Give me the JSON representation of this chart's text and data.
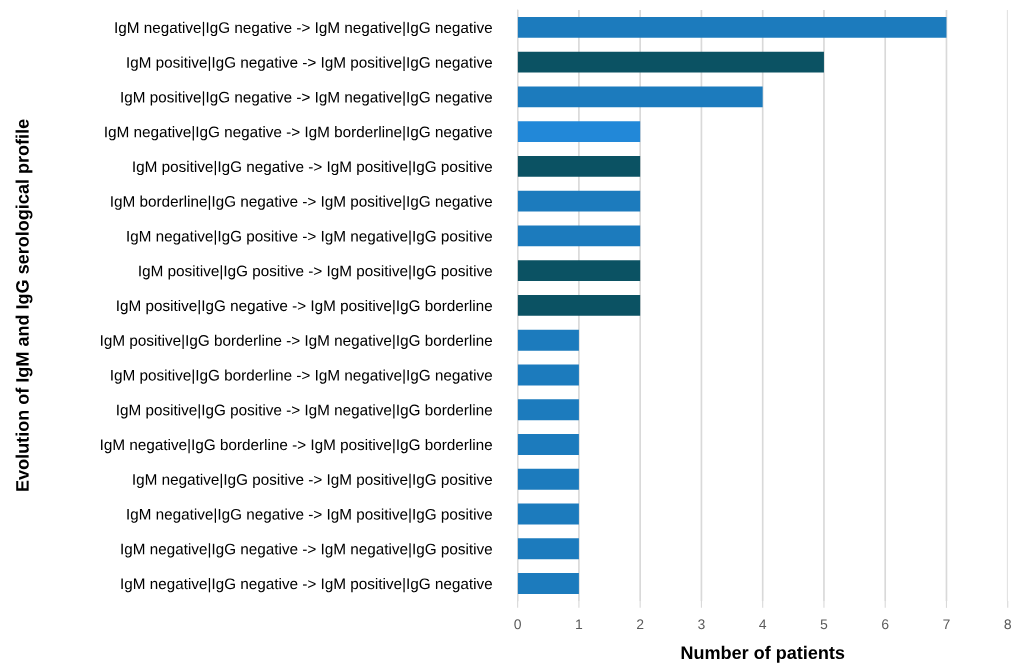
{
  "chart_data": {
    "type": "bar",
    "orientation": "horizontal",
    "xlabel": "Number of patients",
    "ylabel": "Evolution of IgM and IgG serological profile",
    "categories": [
      "IgM negative|IgG negative -> IgM negative|IgG negative",
      "IgM positive|IgG negative -> IgM positive|IgG negative",
      "IgM positive|IgG negative -> IgM negative|IgG negative",
      "IgM negative|IgG negative -> IgM borderline|IgG negative",
      "IgM positive|IgG negative -> IgM positive|IgG positive",
      "IgM borderline|IgG negative -> IgM positive|IgG negative",
      "IgM negative|IgG positive -> IgM negative|IgG positive",
      "IgM positive|IgG positive -> IgM positive|IgG positive",
      "IgM positive|IgG negative -> IgM positive|IgG borderline",
      "IgM positive|IgG borderline -> IgM negative|IgG borderline",
      "IgM positive|IgG borderline -> IgM negative|IgG negative",
      "IgM positive|IgG positive -> IgM negative|IgG borderline",
      "IgM negative|IgG borderline -> IgM positive|IgG borderline",
      "IgM negative|IgG positive -> IgM positive|IgG positive",
      "IgM negative|IgG negative -> IgM positive|IgG positive",
      "IgM negative|IgG negative -> IgM negative|IgG positive",
      "IgM negative|IgG negative -> IgM positive|IgG negative"
    ],
    "values": [
      7,
      5,
      4,
      2,
      2,
      2,
      2,
      2,
      2,
      1,
      1,
      1,
      1,
      1,
      1,
      1,
      1
    ],
    "colors": [
      "#1c7bbd",
      "#0b5263",
      "#1c7bbd",
      "#2288d8",
      "#0b5263",
      "#1c7bbd",
      "#1c7bbd",
      "#0b5263",
      "#0b5263",
      "#1c7bbd",
      "#1c7bbd",
      "#1c7bbd",
      "#1c7bbd",
      "#1c7bbd",
      "#1c7bbd",
      "#1c7bbd",
      "#1c7bbd"
    ],
    "xlim": [
      0,
      8
    ],
    "xticks": [
      0,
      1,
      2,
      3,
      4,
      5,
      6,
      7,
      8
    ],
    "grid": "x"
  }
}
